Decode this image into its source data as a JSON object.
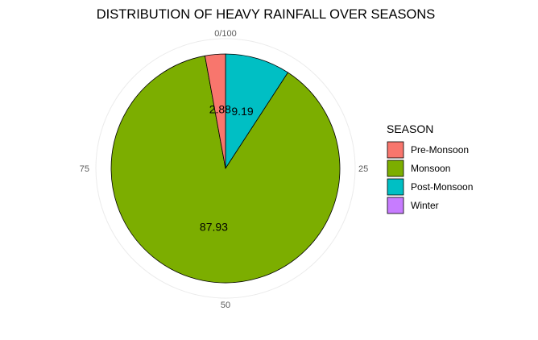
{
  "chart_data": {
    "type": "pie",
    "title": "DISTRIBUTION OF HEAVY RAINFALL OVER SEASONS",
    "theta_ticks": [
      "0/100",
      "25",
      "50",
      "75"
    ],
    "legend_title": "SEASON",
    "legend_position": "right",
    "grid": true,
    "categories": [
      "Pre-Monsoon",
      "Monsoon",
      "Post-Monsoon",
      "Winter"
    ],
    "values": [
      2.88,
      87.93,
      9.19,
      0
    ],
    "data_labels": [
      "2.88",
      "87.93",
      "9.19",
      ""
    ],
    "colors": [
      "#F8766D",
      "#7CAE00",
      "#00BFC4",
      "#C77CFF"
    ],
    "axis_color": "#5a5a5a"
  }
}
